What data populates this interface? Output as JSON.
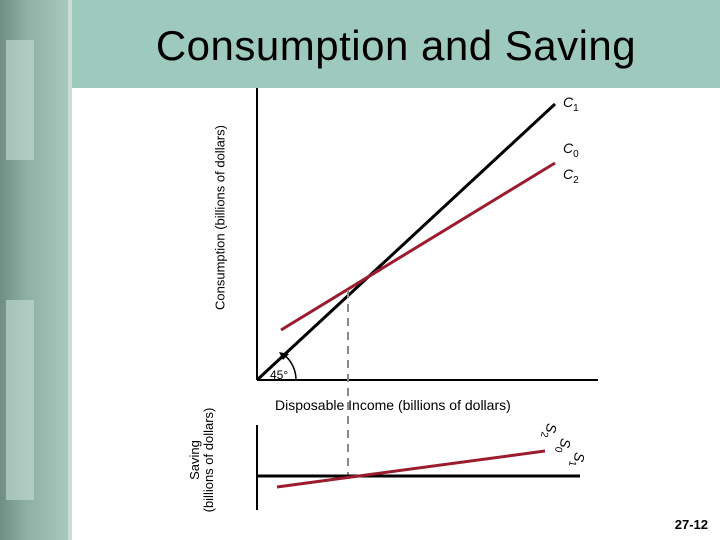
{
  "slide": {
    "title": "Consumption and Saving",
    "slide_number": "27-12"
  },
  "upper_graph": {
    "y_axis_label": "Consumption (billions of dollars)",
    "x_axis_label": "Disposable Income (billions of dollars)",
    "angle_label": "45°",
    "curve_labels": [
      {
        "base": "C",
        "sub": "1"
      },
      {
        "base": "C",
        "sub": "0"
      },
      {
        "base": "C",
        "sub": "2"
      }
    ]
  },
  "lower_graph": {
    "y_axis_label_line1": "Saving",
    "y_axis_label_line2": "(billions of dollars)",
    "curve_labels": [
      {
        "base": "S",
        "sub": "2"
      },
      {
        "base": "S",
        "sub": "0"
      },
      {
        "base": "S",
        "sub": "1"
      }
    ]
  },
  "colors": {
    "red_line": "#9b1c2e",
    "black_line": "#000000",
    "dashed_line": "#8a8a8a",
    "background_teal": "#9ec9bd"
  }
}
